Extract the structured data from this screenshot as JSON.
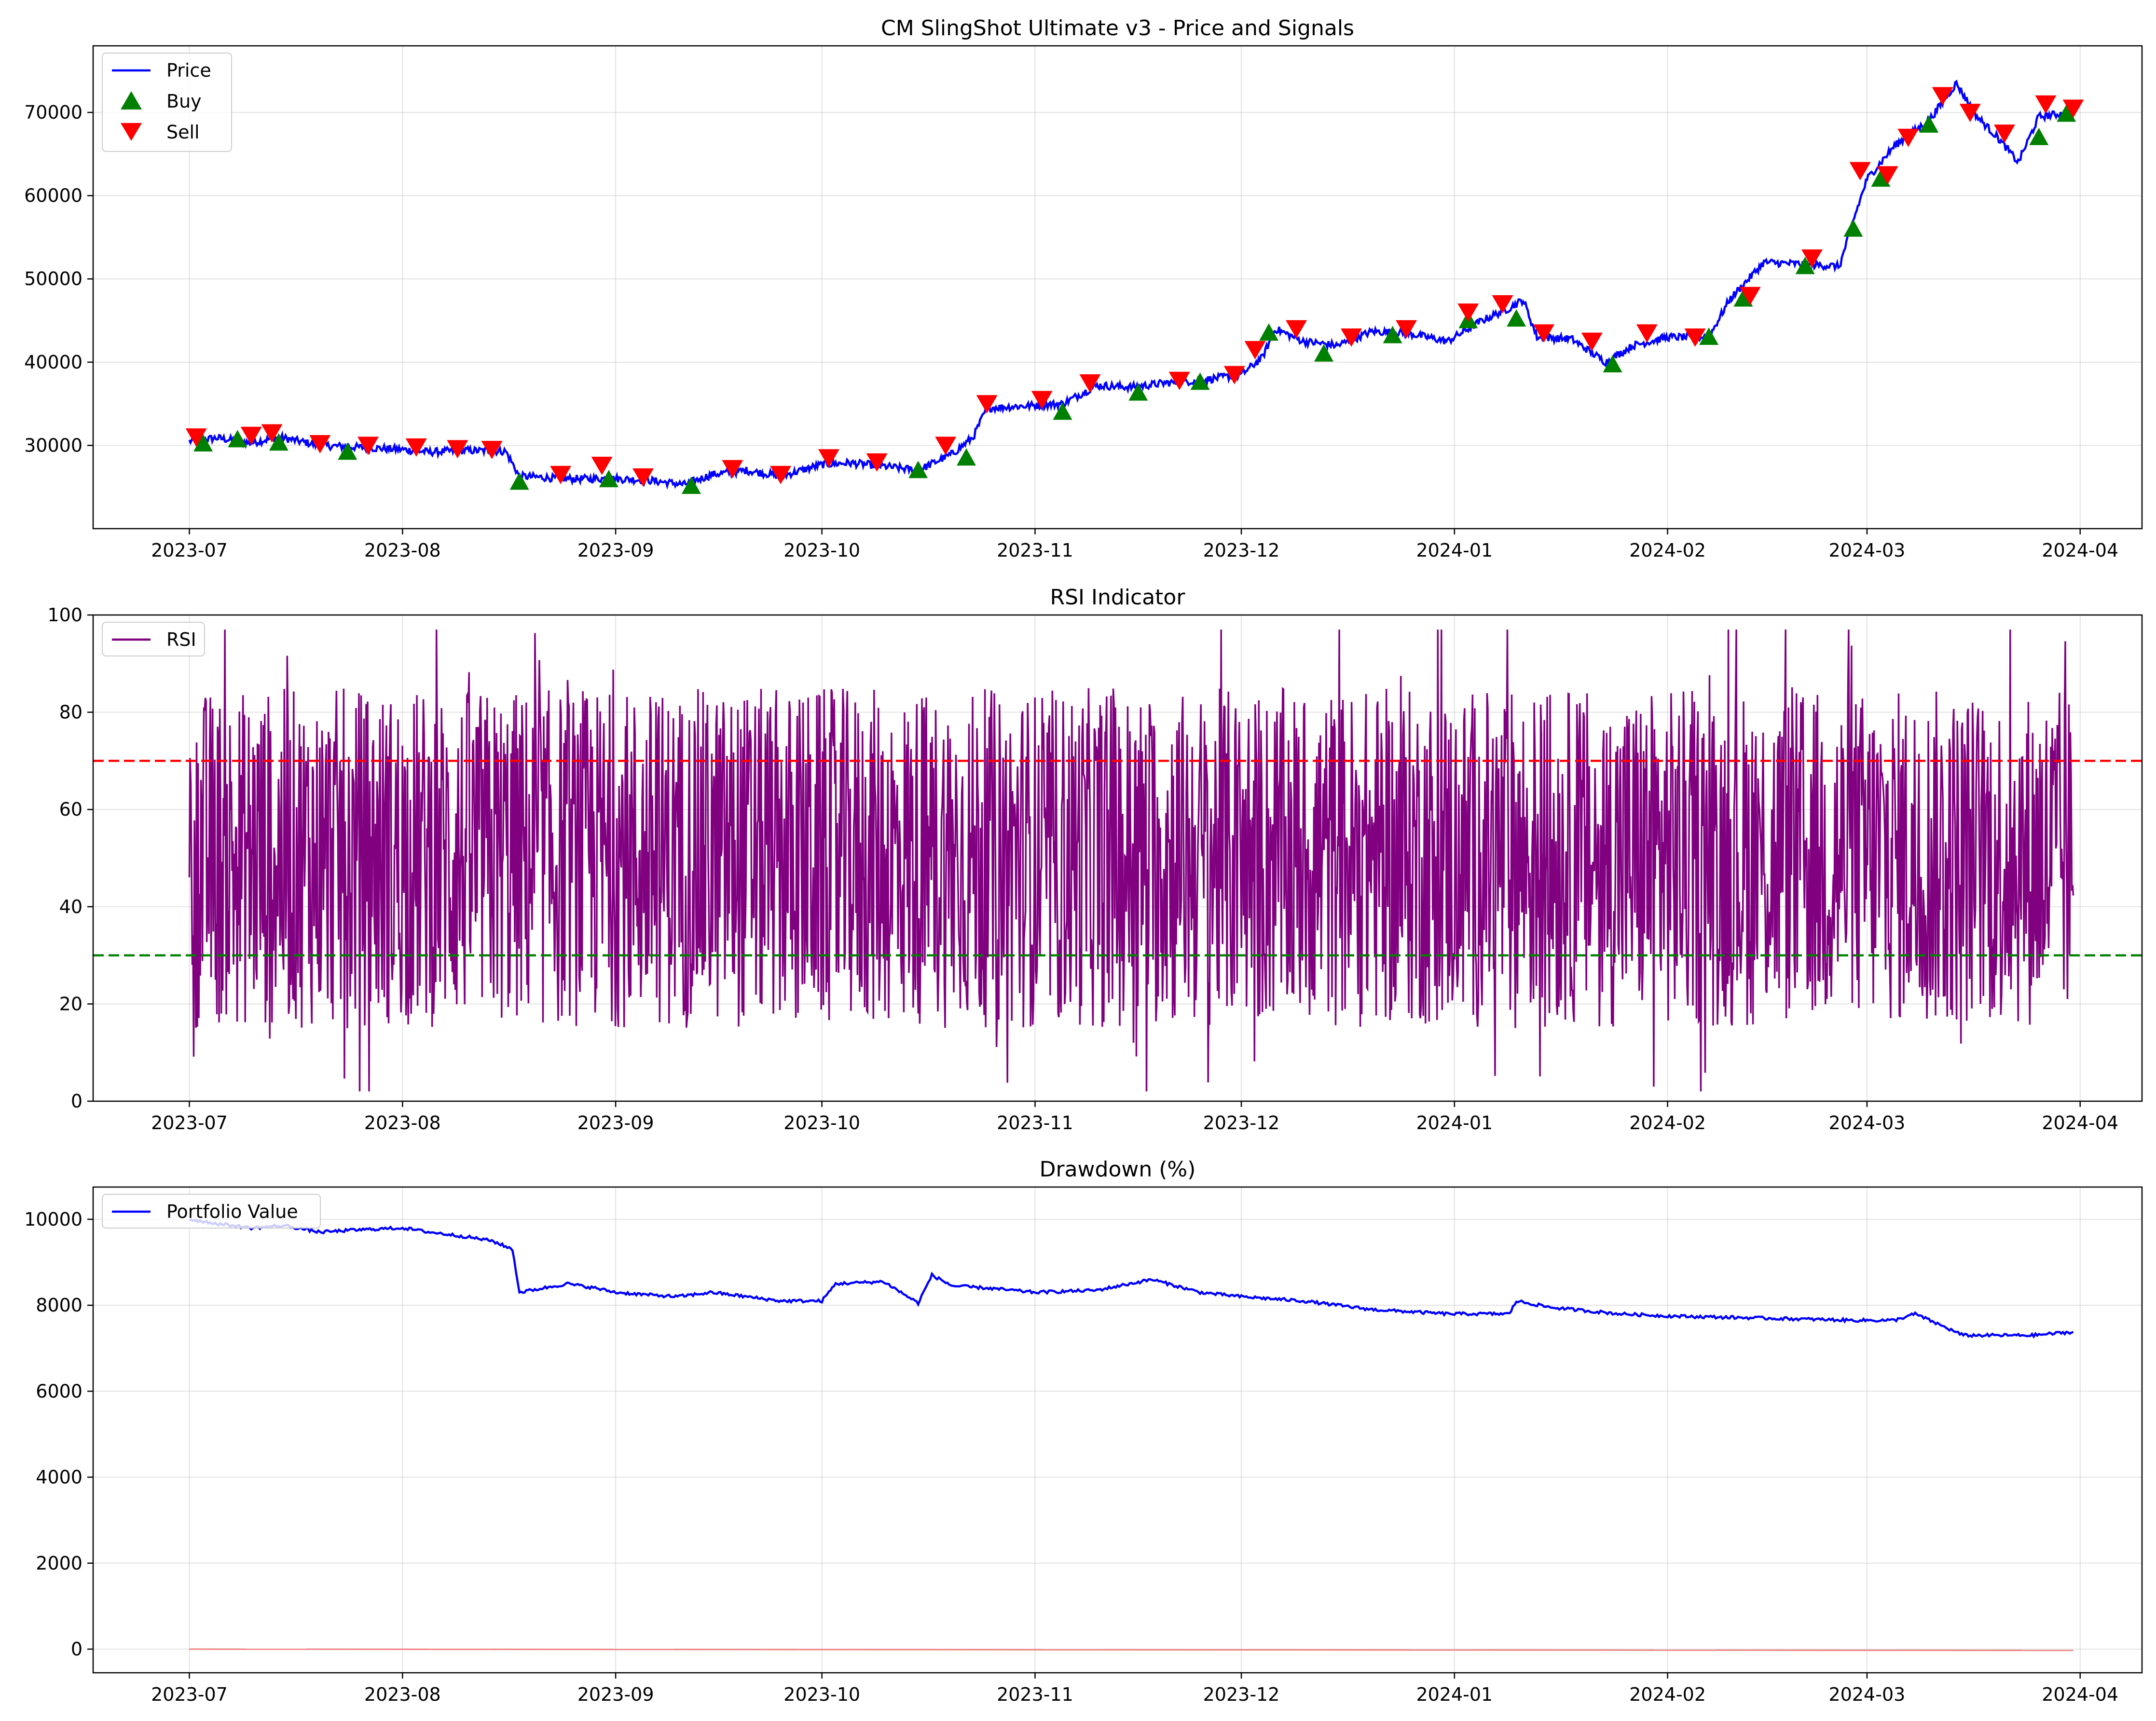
{
  "chart_data": [
    {
      "type": "line",
      "title": "CM SlingShot Ultimate v3 - Price and Signals",
      "xlabel": "",
      "ylabel": "",
      "x_ticks": [
        "2023-07",
        "2023-08",
        "2023-09",
        "2023-10",
        "2023-11",
        "2023-12",
        "2024-01",
        "2024-02",
        "2024-03",
        "2024-04"
      ],
      "xlim": [
        "2023-06-17",
        "2024-04-10"
      ],
      "y_ticks": [
        30000,
        40000,
        50000,
        60000,
        70000
      ],
      "ylim": [
        20000,
        78000
      ],
      "grid": true,
      "legend": "top-left",
      "series": [
        {
          "name": "Price",
          "color": "#0000ff",
          "x": [
            "2023-07-01",
            "2023-07-05",
            "2023-07-10",
            "2023-07-14",
            "2023-07-20",
            "2023-07-25",
            "2023-08-01",
            "2023-08-05",
            "2023-08-10",
            "2023-08-16",
            "2023-08-18",
            "2023-08-25",
            "2023-09-01",
            "2023-09-06",
            "2023-09-11",
            "2023-09-15",
            "2023-09-20",
            "2023-09-25",
            "2023-10-01",
            "2023-10-05",
            "2023-10-10",
            "2023-10-15",
            "2023-10-20",
            "2023-10-23",
            "2023-10-25",
            "2023-11-01",
            "2023-11-05",
            "2023-11-10",
            "2023-11-15",
            "2023-11-20",
            "2023-11-25",
            "2023-12-01",
            "2023-12-04",
            "2023-12-06",
            "2023-12-10",
            "2023-12-15",
            "2023-12-20",
            "2023-12-25",
            "2023-12-31",
            "2024-01-05",
            "2024-01-09",
            "2024-01-11",
            "2024-01-13",
            "2024-01-18",
            "2024-01-23",
            "2024-01-27",
            "2024-02-01",
            "2024-02-07",
            "2024-02-10",
            "2024-02-15",
            "2024-02-20",
            "2024-02-26",
            "2024-02-28",
            "2024-03-01",
            "2024-03-05",
            "2024-03-10",
            "2024-03-14",
            "2024-03-17",
            "2024-03-20",
            "2024-03-23",
            "2024-03-26",
            "2024-03-31"
          ],
          "values": [
            30500,
            30900,
            30300,
            31000,
            30000,
            29800,
            29500,
            29200,
            29400,
            29300,
            26300,
            26000,
            26000,
            25800,
            25300,
            26500,
            27000,
            26300,
            27700,
            27900,
            27500,
            27000,
            29000,
            31000,
            34500,
            34800,
            35000,
            37200,
            37000,
            37500,
            37800,
            38500,
            40500,
            44000,
            42500,
            42000,
            43700,
            43500,
            42500,
            45000,
            46500,
            47500,
            43000,
            42800,
            40000,
            42000,
            43000,
            43000,
            47500,
            52000,
            51800,
            51500,
            57000,
            62000,
            66000,
            69000,
            73500,
            69500,
            67000,
            64000,
            69500,
            70000
          ]
        }
      ],
      "signals": {
        "buy": {
          "name": "Buy",
          "color": "#008000",
          "x": [
            "2023-07-03",
            "2023-07-08",
            "2023-07-14",
            "2023-07-24",
            "2023-08-18",
            "2023-08-31",
            "2023-09-12",
            "2023-10-15",
            "2023-10-22",
            "2023-11-05",
            "2023-11-16",
            "2023-11-25",
            "2023-12-05",
            "2023-12-13",
            "2023-12-23",
            "2024-01-03",
            "2024-01-10",
            "2024-01-24",
            "2024-02-07",
            "2024-02-12",
            "2024-02-21",
            "2024-02-28",
            "2024-03-03",
            "2024-03-10",
            "2024-03-26",
            "2024-03-30"
          ],
          "y": [
            30200,
            30700,
            30300,
            29200,
            25600,
            25900,
            25100,
            27000,
            28500,
            34000,
            36300,
            37600,
            43500,
            41000,
            43200,
            45000,
            45200,
            39700,
            43000,
            47600,
            51500,
            56000,
            62000,
            68500,
            67000,
            69800
          ]
        },
        "sell": {
          "name": "Sell",
          "color": "#ff0000",
          "x": [
            "2023-07-02",
            "2023-07-10",
            "2023-07-13",
            "2023-07-20",
            "2023-07-27",
            "2023-08-03",
            "2023-08-09",
            "2023-08-14",
            "2023-08-24",
            "2023-08-30",
            "2023-09-05",
            "2023-09-18",
            "2023-09-25",
            "2023-10-02",
            "2023-10-09",
            "2023-10-19",
            "2023-10-25",
            "2023-11-02",
            "2023-11-09",
            "2023-11-22",
            "2023-11-30",
            "2023-12-03",
            "2023-12-09",
            "2023-12-17",
            "2023-12-25",
            "2024-01-03",
            "2024-01-08",
            "2024-01-14",
            "2024-01-21",
            "2024-01-29",
            "2024-02-05",
            "2024-02-13",
            "2024-02-22",
            "2024-02-29",
            "2024-03-04",
            "2024-03-07",
            "2024-03-12",
            "2024-03-16",
            "2024-03-21",
            "2024-03-27",
            "2024-03-31"
          ],
          "y": [
            31000,
            31200,
            31500,
            30200,
            30000,
            29800,
            29600,
            29500,
            26500,
            27600,
            26200,
            27200,
            26500,
            28500,
            28000,
            30000,
            35000,
            35500,
            37500,
            37800,
            38500,
            41500,
            44000,
            43000,
            44000,
            46000,
            47000,
            43500,
            42500,
            43500,
            43000,
            48000,
            52500,
            63000,
            62500,
            67000,
            72000,
            70000,
            67500,
            71000,
            70500
          ]
        }
      }
    },
    {
      "type": "line",
      "title": "RSI Indicator",
      "xlabel": "",
      "ylabel": "",
      "x_ticks": [
        "2023-07",
        "2023-08",
        "2023-09",
        "2023-10",
        "2023-11",
        "2023-12",
        "2024-01",
        "2024-02",
        "2024-03",
        "2024-04"
      ],
      "xlim": [
        "2023-06-17",
        "2024-04-10"
      ],
      "y_ticks": [
        0,
        20,
        40,
        60,
        80,
        100
      ],
      "ylim": [
        0,
        100
      ],
      "grid": true,
      "legend": "top-left",
      "series": [
        {
          "name": "RSI",
          "color": "#800080",
          "note_range": [
            2,
            97
          ]
        }
      ],
      "reference_lines": [
        {
          "y": 70,
          "color": "#ff0000",
          "style": "dashed"
        },
        {
          "y": 30,
          "color": "#008000",
          "style": "dashed"
        }
      ]
    },
    {
      "type": "line",
      "title": "Drawdown (%)",
      "xlabel": "",
      "ylabel": "",
      "x_ticks": [
        "2023-07",
        "2023-08",
        "2023-09",
        "2023-10",
        "2023-11",
        "2023-12",
        "2024-01",
        "2024-02",
        "2024-03",
        "2024-04"
      ],
      "xlim": [
        "2023-06-17",
        "2024-04-10"
      ],
      "y_ticks": [
        0,
        2000,
        4000,
        6000,
        8000,
        10000
      ],
      "ylim": [
        -550,
        10750
      ],
      "grid": true,
      "legend": "top-left",
      "series": [
        {
          "name": "Portfolio Value",
          "color": "#0000ff",
          "x": [
            "2023-07-01",
            "2023-07-05",
            "2023-07-10",
            "2023-07-15",
            "2023-07-20",
            "2023-07-25",
            "2023-08-01",
            "2023-08-05",
            "2023-08-10",
            "2023-08-14",
            "2023-08-17",
            "2023-08-18",
            "2023-08-25",
            "2023-08-29",
            "2023-09-01",
            "2023-09-05",
            "2023-09-10",
            "2023-09-15",
            "2023-09-20",
            "2023-09-25",
            "2023-10-01",
            "2023-10-03",
            "2023-10-10",
            "2023-10-15",
            "2023-10-17",
            "2023-10-20",
            "2023-10-25",
            "2023-11-01",
            "2023-11-10",
            "2023-11-18",
            "2023-11-25",
            "2023-12-01",
            "2023-12-10",
            "2023-12-20",
            "2023-12-31",
            "2024-01-09",
            "2024-01-10",
            "2024-01-15",
            "2024-01-25",
            "2024-02-01",
            "2024-02-15",
            "2024-02-28",
            "2024-03-05",
            "2024-03-08",
            "2024-03-15",
            "2024-03-25",
            "2024-03-31"
          ],
          "values": [
            10000,
            9900,
            9800,
            9850,
            9700,
            9750,
            9800,
            9700,
            9600,
            9500,
            9300,
            8300,
            8500,
            8400,
            8300,
            8250,
            8200,
            8300,
            8200,
            8100,
            8100,
            8500,
            8550,
            8050,
            8700,
            8450,
            8400,
            8300,
            8350,
            8600,
            8300,
            8200,
            8100,
            7900,
            7800,
            7800,
            8100,
            7950,
            7800,
            7750,
            7700,
            7650,
            7650,
            7800,
            7300,
            7300,
            7380
          ]
        },
        {
          "name": "",
          "color": "#f08080",
          "x": [
            "2023-07-01",
            "2024-03-31"
          ],
          "values": [
            0,
            -30
          ]
        }
      ]
    }
  ]
}
